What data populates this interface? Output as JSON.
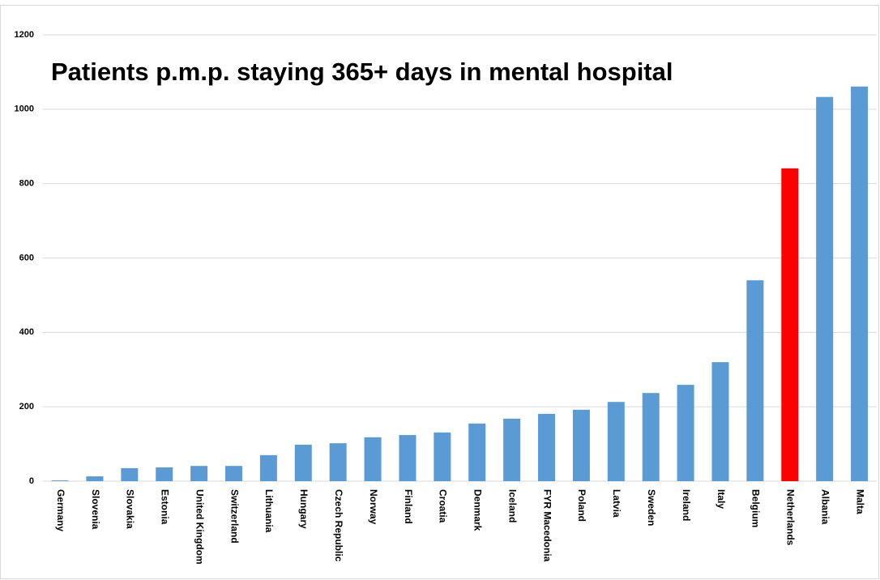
{
  "chart_data": {
    "type": "bar",
    "title": "Patients p.m.p. staying 365+ days in mental hospital",
    "categories": [
      "Germany",
      "Slovenia",
      "Slovakia",
      "Estonia",
      "United Kingdom",
      "Switzerland",
      "Lithuania",
      "Hungary",
      "Czech Republic",
      "Norway",
      "Finland",
      "Croatia",
      "Denmark",
      "Iceland",
      "FYR Macedonia",
      "Poland",
      "Latvia",
      "Sweden",
      "Ireland",
      "Italy",
      "Belgium",
      "Netherlands",
      "Albania",
      "Malta"
    ],
    "values": [
      2,
      13,
      35,
      37,
      41,
      41,
      70,
      98,
      102,
      118,
      124,
      131,
      155,
      168,
      181,
      192,
      213,
      237,
      259,
      320,
      540,
      841,
      1033,
      1061
    ],
    "colors": [
      "#5b9bd5",
      "#5b9bd5",
      "#5b9bd5",
      "#5b9bd5",
      "#5b9bd5",
      "#5b9bd5",
      "#5b9bd5",
      "#5b9bd5",
      "#5b9bd5",
      "#5b9bd5",
      "#5b9bd5",
      "#5b9bd5",
      "#5b9bd5",
      "#5b9bd5",
      "#5b9bd5",
      "#5b9bd5",
      "#5b9bd5",
      "#5b9bd5",
      "#5b9bd5",
      "#5b9bd5",
      "#5b9bd5",
      "#ff0000",
      "#5b9bd5",
      "#5b9bd5"
    ],
    "ylim": [
      0,
      1200
    ],
    "yticks": [
      0,
      200,
      400,
      600,
      800,
      1000,
      1200
    ],
    "grid": true
  }
}
